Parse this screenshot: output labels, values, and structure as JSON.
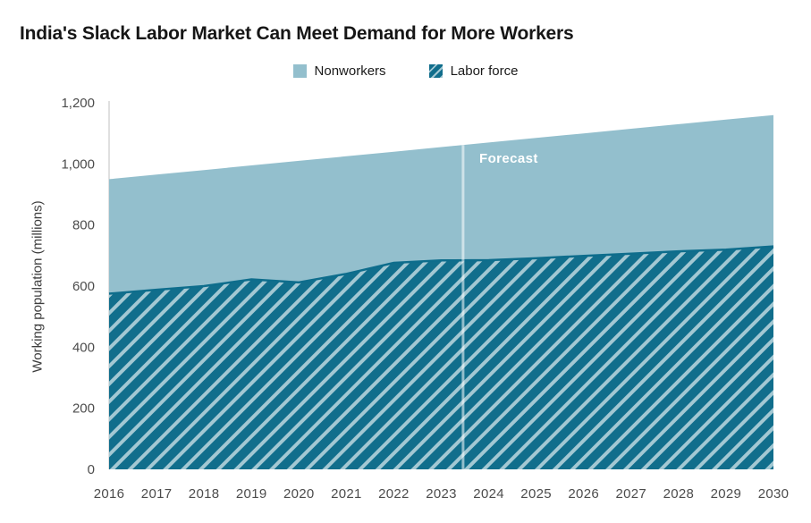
{
  "page": {
    "title": "India's Slack Labor Market Can Meet Demand for More Workers"
  },
  "legend": {
    "items": [
      {
        "label": "Nonworkers",
        "swatch": "solid"
      },
      {
        "label": "Labor force",
        "swatch": "hatched"
      }
    ]
  },
  "chart_data": {
    "type": "area",
    "stacked": true,
    "title": "India's Slack Labor Market Can Meet Demand for More Workers",
    "ylabel": "Working population (millions)",
    "xlabel": "",
    "ylim": [
      0,
      1200
    ],
    "yticks": [
      0,
      200,
      400,
      600,
      800,
      1000,
      1200
    ],
    "ytick_labels": [
      "0",
      "200",
      "400",
      "600",
      "800",
      "1,000",
      "1,200"
    ],
    "x": [
      2016,
      2017,
      2018,
      2019,
      2020,
      2021,
      2022,
      2023,
      2024,
      2025,
      2026,
      2027,
      2028,
      2029,
      2030
    ],
    "series": [
      {
        "name": "Labor force",
        "values": [
          575,
          588,
          600,
          622,
          612,
          640,
          676,
          684,
          685,
          691,
          699,
          706,
          714,
          719,
          730
        ],
        "style": "hatched"
      },
      {
        "name": "Nonworkers",
        "values": [
          375,
          377,
          380,
          373,
          398,
          385,
          364,
          371,
          385,
          394,
          401,
          409,
          416,
          426,
          430
        ],
        "style": "solid"
      }
    ],
    "totals": [
      950,
      965,
      980,
      995,
      1010,
      1025,
      1040,
      1055,
      1070,
      1085,
      1100,
      1115,
      1130,
      1145,
      1160
    ],
    "forecast": {
      "label": "Forecast",
      "divider_year": 2023.46
    },
    "legend_position": "top-center",
    "grid": false,
    "colors": {
      "nonworkers": "#93bfcd",
      "labor_dark": "#116e8c",
      "labor_light": "#a3c8d3",
      "labor_edge": "#0e6d8c",
      "axis_line": "#d6d6d6",
      "divider": "rgba(255,255,255,0.55)",
      "tick_text": "#4c4c4c"
    }
  }
}
